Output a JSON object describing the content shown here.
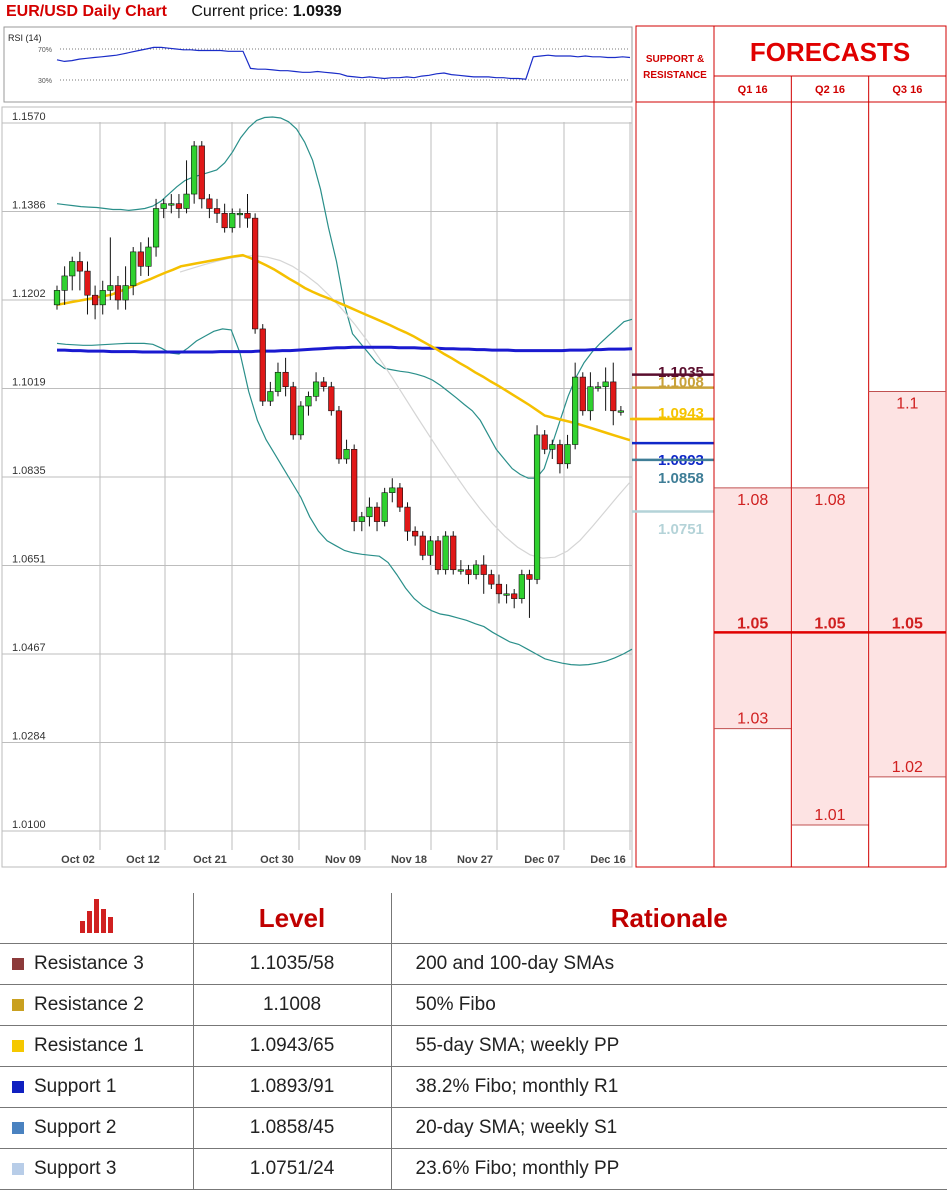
{
  "header": {
    "title": "EUR/USD Daily Chart",
    "price_label": "Current price:",
    "price_value": "1.0939"
  },
  "rsi": {
    "label": "RSI (14)",
    "levels": [
      "70%",
      "30%"
    ],
    "ylim": [
      0,
      100
    ],
    "values": [
      56,
      54,
      55,
      57,
      58,
      59,
      60,
      61,
      62,
      64,
      66,
      68,
      70,
      72,
      72,
      71,
      70,
      69,
      69,
      68,
      68,
      68,
      68,
      67,
      67,
      67,
      45,
      44,
      44,
      43,
      42,
      42,
      41,
      40,
      40,
      41,
      40,
      39,
      38,
      35,
      34,
      33,
      34,
      33,
      32,
      33,
      33,
      34,
      33,
      35,
      36,
      38,
      39,
      37,
      36,
      35,
      34,
      34,
      34,
      33,
      33,
      32,
      32,
      31,
      60,
      61,
      62,
      61,
      61,
      61,
      60,
      61,
      60,
      60,
      59,
      59,
      60,
      59
    ]
  },
  "chart_data": {
    "type": "candlestick",
    "ylim": [
      1.01,
      1.157
    ],
    "y_ticks": [
      "1.1570",
      "1.1386",
      "1.1202",
      "1.1019",
      "1.0835",
      "1.0651",
      "1.0467",
      "1.0284",
      "1.0100"
    ],
    "x_ticks": [
      "Oct 02",
      "Oct 12",
      "Oct 21",
      "Oct 30",
      "Nov 09",
      "Nov 18",
      "Nov 27",
      "Dec 07",
      "Dec 16"
    ],
    "candles": [
      [
        1.118,
        1.121,
        1.122,
        1.117
      ],
      [
        1.121,
        1.124,
        1.126,
        1.118
      ],
      [
        1.124,
        1.127,
        1.128,
        1.121
      ],
      [
        1.127,
        1.125,
        1.129,
        1.121
      ],
      [
        1.125,
        1.12,
        1.127,
        1.116
      ],
      [
        1.12,
        1.118,
        1.122,
        1.115
      ],
      [
        1.118,
        1.121,
        1.123,
        1.116
      ],
      [
        1.121,
        1.122,
        1.132,
        1.119
      ],
      [
        1.122,
        1.119,
        1.124,
        1.117
      ],
      [
        1.119,
        1.122,
        1.126,
        1.117
      ],
      [
        1.122,
        1.129,
        1.13,
        1.12
      ],
      [
        1.129,
        1.126,
        1.131,
        1.124
      ],
      [
        1.126,
        1.13,
        1.132,
        1.124
      ],
      [
        1.13,
        1.138,
        1.14,
        1.128
      ],
      [
        1.138,
        1.139,
        1.14,
        1.136
      ],
      [
        1.139,
        1.139,
        1.141,
        1.137
      ],
      [
        1.139,
        1.138,
        1.141,
        1.136
      ],
      [
        1.138,
        1.141,
        1.148,
        1.137
      ],
      [
        1.141,
        1.151,
        1.152,
        1.139
      ],
      [
        1.151,
        1.14,
        1.152,
        1.138
      ],
      [
        1.14,
        1.138,
        1.141,
        1.136
      ],
      [
        1.138,
        1.137,
        1.14,
        1.135
      ],
      [
        1.137,
        1.134,
        1.139,
        1.133
      ],
      [
        1.134,
        1.137,
        1.138,
        1.133
      ],
      [
        1.137,
        1.137,
        1.138,
        1.134
      ],
      [
        1.137,
        1.136,
        1.141,
        1.134
      ],
      [
        1.136,
        1.113,
        1.137,
        1.112
      ],
      [
        1.113,
        1.098,
        1.114,
        1.097
      ],
      [
        1.098,
        1.1,
        1.102,
        1.097
      ],
      [
        1.1,
        1.104,
        1.106,
        1.099
      ],
      [
        1.104,
        1.101,
        1.107,
        1.099
      ],
      [
        1.101,
        1.091,
        1.102,
        1.09
      ],
      [
        1.091,
        1.097,
        1.098,
        1.09
      ],
      [
        1.097,
        1.099,
        1.1,
        1.095
      ],
      [
        1.099,
        1.102,
        1.104,
        1.098
      ],
      [
        1.102,
        1.101,
        1.103,
        1.1
      ],
      [
        1.101,
        1.096,
        1.102,
        1.095
      ],
      [
        1.096,
        1.086,
        1.097,
        1.085
      ],
      [
        1.086,
        1.088,
        1.09,
        1.085
      ],
      [
        1.088,
        1.073,
        1.089,
        1.071
      ],
      [
        1.073,
        1.074,
        1.075,
        1.071
      ],
      [
        1.074,
        1.076,
        1.078,
        1.072
      ],
      [
        1.076,
        1.073,
        1.077,
        1.071
      ],
      [
        1.073,
        1.079,
        1.08,
        1.072
      ],
      [
        1.079,
        1.08,
        1.082,
        1.077
      ],
      [
        1.08,
        1.076,
        1.081,
        1.075
      ],
      [
        1.076,
        1.071,
        1.077,
        1.069
      ],
      [
        1.071,
        1.07,
        1.072,
        1.068
      ],
      [
        1.07,
        1.066,
        1.071,
        1.065
      ],
      [
        1.066,
        1.069,
        1.07,
        1.064
      ],
      [
        1.069,
        1.063,
        1.07,
        1.062
      ],
      [
        1.063,
        1.07,
        1.071,
        1.062
      ],
      [
        1.07,
        1.063,
        1.071,
        1.062
      ],
      [
        1.063,
        1.063,
        1.065,
        1.062
      ],
      [
        1.063,
        1.062,
        1.064,
        1.06
      ],
      [
        1.062,
        1.064,
        1.065,
        1.061
      ],
      [
        1.064,
        1.062,
        1.066,
        1.058
      ],
      [
        1.062,
        1.06,
        1.063,
        1.059
      ],
      [
        1.06,
        1.058,
        1.062,
        1.056
      ],
      [
        1.058,
        1.058,
        1.06,
        1.056
      ],
      [
        1.058,
        1.057,
        1.059,
        1.055
      ],
      [
        1.057,
        1.062,
        1.063,
        1.056
      ],
      [
        1.062,
        1.061,
        1.063,
        1.053
      ],
      [
        1.061,
        1.091,
        1.093,
        1.06
      ],
      [
        1.091,
        1.088,
        1.092,
        1.087
      ],
      [
        1.088,
        1.089,
        1.09,
        1.086
      ],
      [
        1.089,
        1.085,
        1.09,
        1.083
      ],
      [
        1.085,
        1.089,
        1.091,
        1.084
      ],
      [
        1.089,
        1.103,
        1.106,
        1.088
      ],
      [
        1.103,
        1.096,
        1.104,
        1.095
      ],
      [
        1.096,
        1.101,
        1.104,
        1.094
      ],
      [
        1.101,
        1.101,
        1.102,
        1.1
      ],
      [
        1.101,
        1.102,
        1.105,
        1.096
      ],
      [
        1.102,
        1.096,
        1.106,
        1.093
      ],
      [
        1.096,
        1.096,
        1.097,
        1.095
      ]
    ],
    "sma_200": [
      1.1086,
      1.1086,
      1.1085,
      1.1085,
      1.1084,
      1.1084,
      1.1084,
      1.1083,
      1.1083,
      1.1083,
      1.1083,
      1.1082,
      1.1082,
      1.1082,
      1.1082,
      1.1082,
      1.1082,
      1.1082,
      1.1082,
      1.1082,
      1.1082,
      1.1083,
      1.1083,
      1.1083,
      1.1083,
      1.1083,
      1.1084,
      1.1084,
      1.1084,
      1.1085,
      1.1085,
      1.1086,
      1.1087,
      1.1088,
      1.1089,
      1.109,
      1.1091,
      1.1091,
      1.1092,
      1.1092,
      1.1092,
      1.1092,
      1.1092,
      1.1092,
      1.1091,
      1.1091,
      1.1091,
      1.109,
      1.109,
      1.109,
      1.1089,
      1.1089,
      1.1088,
      1.1088,
      1.1087,
      1.1087,
      1.1086,
      1.1086,
      1.1086,
      1.1085,
      1.1085,
      1.1085,
      1.1085,
      1.1085,
      1.1085,
      1.1085,
      1.1086,
      1.1086,
      1.1086,
      1.1087,
      1.1087,
      1.1088,
      1.1088,
      1.1088,
      1.1089
    ],
    "sma_55": [
      1.118,
      1.1183,
      1.1186,
      1.1189,
      1.1192,
      1.1195,
      1.1198,
      1.1201,
      1.1207,
      1.1214,
      1.122,
      1.1227,
      1.1233,
      1.124,
      1.1247,
      1.1253,
      1.126,
      1.1263,
      1.1266,
      1.1269,
      1.1272,
      1.1275,
      1.1278,
      1.1281,
      1.1283,
      1.1277,
      1.127,
      1.1262,
      1.1254,
      1.1244,
      1.1234,
      1.1225,
      1.1215,
      1.1207,
      1.12,
      1.1194,
      1.1187,
      1.118,
      1.1173,
      1.1166,
      1.1159,
      1.1152,
      1.1145,
      1.1138,
      1.113,
      1.1123,
      1.1115,
      1.1106,
      1.1097,
      1.1088,
      1.1078,
      1.1069,
      1.1059,
      1.105,
      1.104,
      1.1031,
      1.1021,
      1.1012,
      1.1002,
      1.0992,
      1.0982,
      1.0972,
      1.0961,
      1.095,
      1.0946,
      1.0942,
      1.0938,
      1.0934,
      1.0929,
      1.0924,
      1.0919,
      1.0914,
      1.0909,
      1.0904,
      1.0899
    ],
    "sma_grey": [
      1.1248,
      1.1256,
      1.1264,
      1.1271,
      1.1277,
      1.1281,
      1.1282,
      1.1279,
      1.1272,
      1.126,
      1.1243,
      1.1223,
      1.1198,
      1.117,
      1.1139,
      1.1105,
      1.1067,
      1.1028,
      1.0987,
      1.0946,
      1.0906,
      1.0866,
      1.0828,
      1.0791,
      1.0757,
      1.0726,
      1.0699,
      1.0677,
      1.0661,
      1.0654,
      1.0656,
      1.0669,
      1.0691,
      1.072,
      1.0751,
      1.0782,
      1.0812
    ],
    "bb_upper": [
      1.139,
      1.1388,
      1.1386,
      1.1384,
      1.1383,
      1.1382,
      1.138,
      1.1378,
      1.1378,
      1.1376,
      1.1378,
      1.138,
      1.1385,
      1.1395,
      1.141,
      1.1425,
      1.1438,
      1.1445,
      1.145,
      1.1455,
      1.146,
      1.1475,
      1.1498,
      1.1527,
      1.1548,
      1.1563,
      1.1569,
      1.157,
      1.1568,
      1.156,
      1.1545,
      1.1518,
      1.148,
      1.142,
      1.134,
      1.127,
      1.118,
      1.112,
      1.11,
      1.108,
      1.106,
      1.1048,
      1.1045,
      1.1042,
      1.104,
      1.1036,
      1.1031,
      1.1024,
      1.1013,
      1.1,
      1.0987,
      1.0973,
      1.096,
      1.094,
      1.091,
      1.088,
      1.086,
      1.084,
      1.0828,
      1.082,
      1.082,
      1.084,
      1.089,
      1.094,
      1.099,
      1.103,
      1.106,
      1.1082,
      1.11,
      1.1115,
      1.113,
      1.1145,
      1.115
    ],
    "bb_lower": [
      1.11,
      1.1098,
      1.1097,
      1.1096,
      1.1096,
      1.1097,
      1.1098,
      1.1099,
      1.11,
      1.11,
      1.11,
      1.1098,
      1.109,
      1.108,
      1.1078,
      1.109,
      1.1105,
      1.1115,
      1.1125,
      1.113,
      1.1128,
      1.108,
      1.1,
      1.094,
      1.09,
      1.087,
      1.084,
      1.081,
      1.078,
      1.074,
      1.071,
      1.069,
      1.068,
      1.067,
      1.0665,
      1.0662,
      1.066,
      1.0658,
      1.0645,
      1.062,
      1.0592,
      1.057,
      1.0555,
      1.0545,
      1.0538,
      1.0535,
      1.053,
      1.0525,
      1.0518,
      1.0512,
      1.05,
      1.049,
      1.048,
      1.0475,
      1.0465,
      1.0455,
      1.0445,
      1.044,
      1.0436,
      1.0433,
      1.0432,
      1.0433,
      1.0436,
      1.044,
      1.0447,
      1.0455,
      1.0465
    ]
  },
  "sr_panel": {
    "title": "SUPPORT & RESISTANCE",
    "levels": [
      {
        "label": "1.1035",
        "value": 1.1035,
        "color": "#5a0e2e"
      },
      {
        "label": "1.1008",
        "value": 1.1008,
        "color": "#c9a23a"
      },
      {
        "label": "1.0943",
        "value": 1.0943,
        "color": "#f5c400"
      },
      {
        "label": "1.0893",
        "value": 1.0893,
        "color": "#1028c8"
      },
      {
        "label": "1.0858",
        "value": 1.0858,
        "color": "#3f7e97"
      },
      {
        "label": "1.0751",
        "value": 1.0751,
        "color": "#b4d3d8"
      }
    ]
  },
  "forecasts": {
    "title": "FORECASTS",
    "quarters": [
      {
        "name": "Q1 16",
        "high_label": "1.08",
        "high": 1.08,
        "mid_label": "1.05",
        "mid": 1.05,
        "low_label": "1.03",
        "low": 1.03
      },
      {
        "name": "Q2 16",
        "high_label": "1.08",
        "high": 1.08,
        "mid_label": "1.05",
        "mid": 1.05,
        "low_label": "1.01",
        "low": 1.01
      },
      {
        "name": "Q3 16",
        "high_label": "1.1",
        "high": 1.1,
        "mid_label": "1.05",
        "mid": 1.05,
        "low_label": "1.02",
        "low": 1.02
      }
    ],
    "fill_color": "#fde3e3",
    "accent_color": "#e00000"
  },
  "levels_table": {
    "header_level": "Level",
    "header_rationale": "Rationale",
    "rows": [
      {
        "name": "Resistance 3",
        "color": "#8c3a3a",
        "level": "1.1035/58",
        "rationale": "200 and 100-day SMAs"
      },
      {
        "name": "Resistance 2",
        "color": "#c9a020",
        "level": "1.1008",
        "rationale": "50% Fibo"
      },
      {
        "name": "Resistance 1",
        "color": "#f5c800",
        "level": "1.0943/65",
        "rationale": "55-day SMA; weekly PP"
      },
      {
        "name": "Support 1",
        "color": "#1020c0",
        "level": "1.0893/91",
        "rationale": "38.2% Fibo; monthly R1"
      },
      {
        "name": "Support 2",
        "color": "#4a82c0",
        "level": "1.0858/45",
        "rationale": "20-day SMA; weekly S1"
      },
      {
        "name": "Support 3",
        "color": "#b8cde8",
        "level": "1.0751/24",
        "rationale": "23.6% Fibo; monthly PP"
      }
    ]
  }
}
